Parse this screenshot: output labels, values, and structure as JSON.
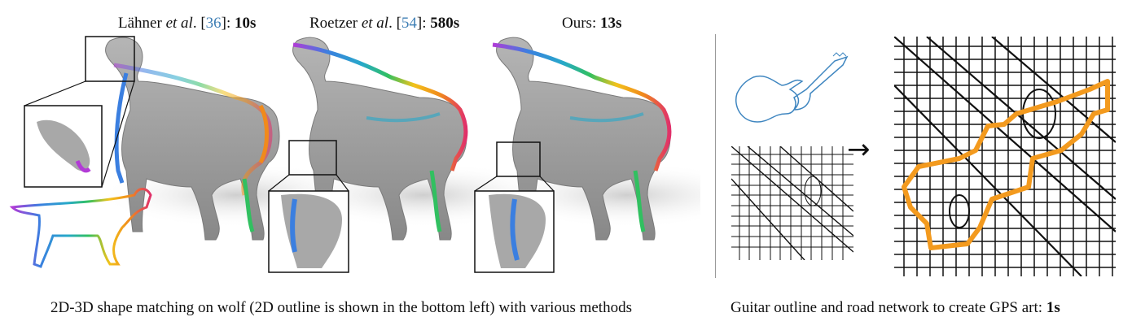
{
  "labels": {
    "method1_name": "Lähner",
    "method1_etal": "et al",
    "method1_ref": "36",
    "method1_time": "10s",
    "method2_name": "Roetzer",
    "method2_etal": "et al",
    "method2_ref": "54",
    "method2_time": "580s",
    "method3_name": "Ours:",
    "method3_time": "13s"
  },
  "captions": {
    "left": "2D-3D shape matching on wolf (2D outline is shown in the bottom left) with various methods",
    "right_prefix": "Guitar outline and road network to create GPS art:",
    "right_time": "1s"
  },
  "arrow": "→",
  "colors": {
    "wolf_body": "#9c9c9c",
    "citation": "#3f7fb5",
    "guitar": "#3f86c0",
    "gps_route": "#f39a1e",
    "rainbow": [
      "#b23bd6",
      "#6a55e0",
      "#3b7fe0",
      "#27a9c9",
      "#31c060",
      "#8bd23c",
      "#f2c21b",
      "#f08a1c",
      "#e8452e",
      "#e0306a"
    ]
  }
}
